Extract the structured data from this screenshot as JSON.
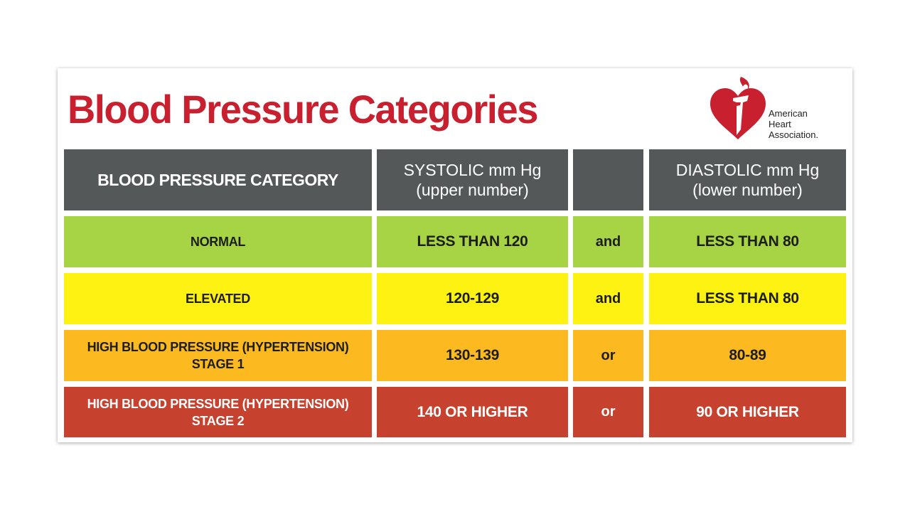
{
  "title": "Blood Pressure Categories",
  "logo": {
    "line1": "American",
    "line2": "Heart",
    "line3": "Association."
  },
  "colors": {
    "title_red": "#c8202f",
    "header_gray": "#545859",
    "normal_green": "#a6d444",
    "elevated_yellow": "#fdf211",
    "stage1_orange": "#fcba20",
    "stage2_red": "#c6412e"
  },
  "table": {
    "headers": {
      "category": "BLOOD PRESSURE CATEGORY",
      "systolic_line1": "SYSTOLIC mm Hg",
      "systolic_line2": "(upper number)",
      "conjunction": "",
      "diastolic_line1": "DIASTOLIC mm Hg",
      "diastolic_line2": "(lower number)"
    },
    "rows": [
      {
        "category_line1": "NORMAL",
        "category_line2": "",
        "systolic": "LESS THAN 120",
        "conjunction": "and",
        "diastolic": "LESS THAN 80"
      },
      {
        "category_line1": "ELEVATED",
        "category_line2": "",
        "systolic": "120-129",
        "conjunction": "and",
        "diastolic": "LESS THAN 80"
      },
      {
        "category_line1": "HIGH BLOOD PRESSURE",
        "category_line2": "(HYPERTENSION) STAGE 1",
        "systolic": "130-139",
        "conjunction": "or",
        "diastolic": "80-89"
      },
      {
        "category_line1": "HIGH BLOOD PRESSURE",
        "category_line2": "(HYPERTENSION) STAGE 2",
        "systolic": "140 OR HIGHER",
        "conjunction": "or",
        "diastolic": "90 OR HIGHER"
      }
    ]
  }
}
